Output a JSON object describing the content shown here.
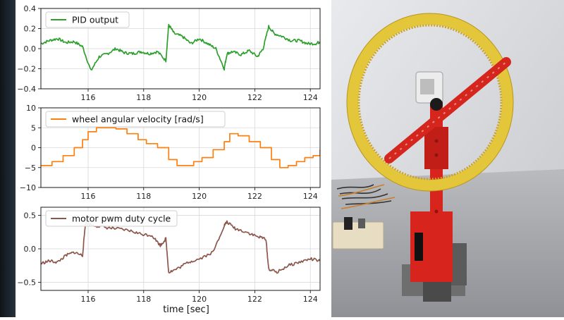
{
  "figure": {
    "xlabel": "time [sec]"
  },
  "chart_data": [
    {
      "type": "line",
      "series": [
        {
          "name": "PID output",
          "color": "#2ca02c"
        }
      ],
      "xlim": [
        114.3,
        124.35
      ],
      "ylim": [
        -0.4,
        0.4
      ],
      "xticks": [
        116,
        118,
        120,
        122,
        124
      ],
      "yticks": [
        -0.4,
        -0.2,
        0.0,
        0.2,
        0.4
      ],
      "xticklabels": [
        "116",
        "118",
        "120",
        "122",
        "124"
      ],
      "yticklabels": [
        "−0.4",
        "−0.2",
        "0.0",
        "0.2",
        "0.4"
      ],
      "grid": true,
      "legend": "top-left",
      "x": [
        114.3,
        114.6,
        114.9,
        115.2,
        115.5,
        115.8,
        116.1,
        116.4,
        116.7,
        117.0,
        117.3,
        117.6,
        117.9,
        118.2,
        118.5,
        118.8,
        118.9,
        119.1,
        119.4,
        119.7,
        120.0,
        120.3,
        120.6,
        120.9,
        121.0,
        121.2,
        121.5,
        121.8,
        122.1,
        122.3,
        122.5,
        122.7,
        123.0,
        123.3,
        123.6,
        123.9,
        124.2,
        124.35
      ],
      "y": [
        0.05,
        0.08,
        0.1,
        0.06,
        0.07,
        0.02,
        -0.22,
        -0.08,
        -0.05,
        0.0,
        -0.04,
        -0.05,
        -0.03,
        -0.05,
        -0.03,
        -0.12,
        0.24,
        0.15,
        0.12,
        0.05,
        0.1,
        0.05,
        0.0,
        -0.2,
        -0.05,
        -0.03,
        -0.06,
        -0.02,
        -0.08,
        0.0,
        0.22,
        0.15,
        0.12,
        0.08,
        0.08,
        0.05,
        0.05,
        0.07
      ]
    },
    {
      "type": "line",
      "series": [
        {
          "name": "wheel angular velocity [rad/s]",
          "color": "#ff7f0e"
        }
      ],
      "xlim": [
        114.3,
        124.35
      ],
      "ylim": [
        -10,
        10
      ],
      "xticks": [
        116,
        118,
        120,
        122,
        124
      ],
      "yticks": [
        -10,
        -5,
        0,
        5,
        10
      ],
      "xticklabels": [
        "116",
        "118",
        "120",
        "122",
        "124"
      ],
      "yticklabels": [
        "−10",
        "−5",
        "0",
        "5",
        "10"
      ],
      "grid": true,
      "legend": "top-left",
      "x": [
        114.3,
        114.7,
        115.1,
        115.5,
        115.8,
        116.0,
        116.3,
        116.6,
        117.0,
        117.4,
        117.8,
        118.1,
        118.5,
        118.9,
        119.2,
        119.5,
        119.8,
        120.1,
        120.5,
        120.9,
        121.1,
        121.4,
        121.8,
        122.2,
        122.6,
        122.9,
        123.2,
        123.5,
        123.8,
        124.1,
        124.35
      ],
      "y": [
        -4.5,
        -3.5,
        -2.0,
        0.0,
        2.0,
        4.0,
        5.0,
        5.0,
        4.7,
        3.5,
        2.0,
        1.0,
        0.0,
        -3.0,
        -4.5,
        -4.5,
        -3.5,
        -2.5,
        -0.5,
        1.5,
        3.5,
        3.0,
        1.5,
        0.0,
        -3.0,
        -5.0,
        -4.5,
        -3.5,
        -2.5,
        -2.0,
        -0.5
      ]
    },
    {
      "type": "line",
      "series": [
        {
          "name": "motor pwm duty cycle",
          "color": "#8c564b"
        }
      ],
      "xlim": [
        114.3,
        124.35
      ],
      "ylim": [
        -0.62,
        0.62
      ],
      "xticks": [
        116,
        118,
        120,
        122,
        124
      ],
      "yticks": [
        -0.5,
        0.0,
        0.5
      ],
      "xticklabels": [
        "116",
        "118",
        "120",
        "122",
        "124"
      ],
      "yticklabels": [
        "−0.5",
        "0.0",
        "0.5"
      ],
      "grid": true,
      "legend": "top-left",
      "x": [
        114.3,
        114.6,
        114.9,
        115.2,
        115.5,
        115.8,
        115.9,
        116.2,
        116.6,
        117.0,
        117.5,
        117.9,
        118.3,
        118.6,
        118.8,
        118.9,
        119.2,
        119.6,
        120.0,
        120.5,
        120.9,
        121.0,
        121.3,
        121.7,
        122.1,
        122.4,
        122.5,
        122.8,
        123.2,
        123.6,
        124.0,
        124.35
      ],
      "y": [
        -0.22,
        -0.18,
        -0.2,
        -0.1,
        -0.05,
        -0.1,
        0.38,
        0.35,
        0.32,
        0.3,
        0.27,
        0.22,
        0.2,
        0.05,
        0.15,
        -0.35,
        -0.3,
        -0.2,
        -0.15,
        -0.05,
        0.35,
        0.4,
        0.3,
        0.25,
        0.18,
        0.15,
        -0.3,
        -0.35,
        -0.25,
        -0.2,
        -0.15,
        -0.18
      ]
    }
  ]
}
